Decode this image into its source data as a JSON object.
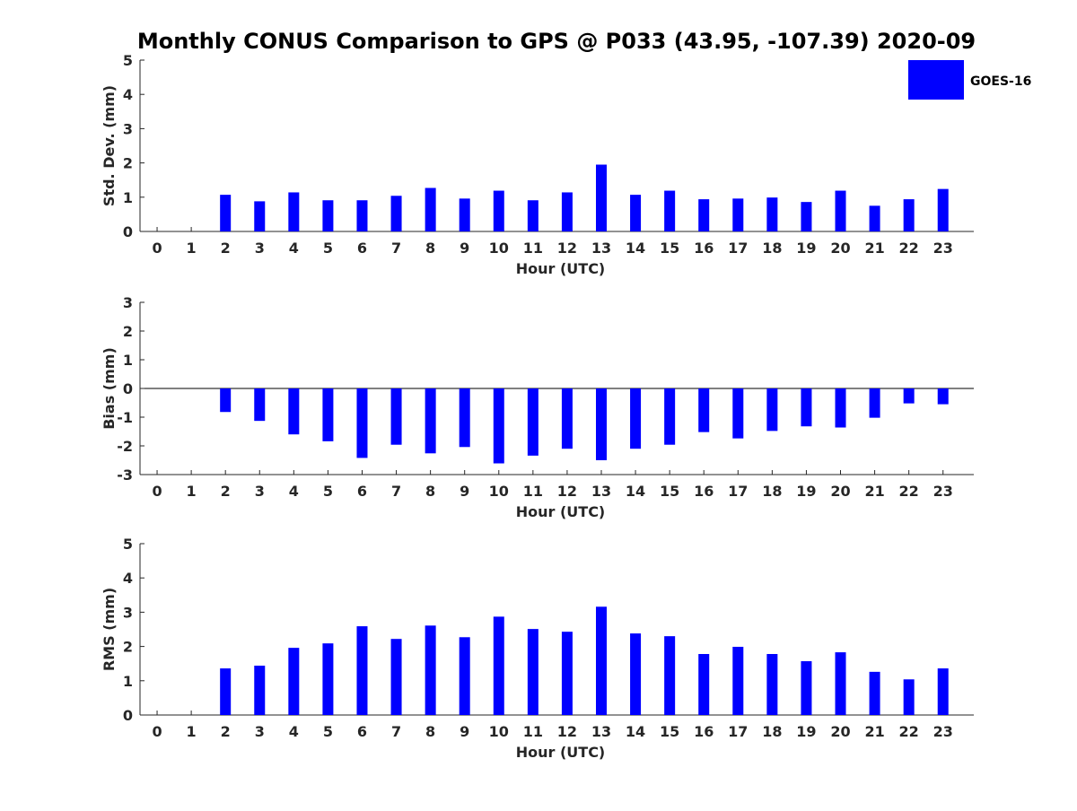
{
  "title": "Monthly CONUS Comparison to GPS @ P033 (43.95, -107.39) 2020-09",
  "legend": {
    "label": "GOES-16",
    "color": "#0000ff",
    "position": "top-right"
  },
  "chart_data": [
    {
      "type": "bar",
      "xlabel": "Hour (UTC)",
      "ylabel": "Std. Dev. (mm)",
      "ylim": [
        0,
        5
      ],
      "yticks": [
        0,
        1,
        2,
        3,
        4,
        5
      ],
      "categories": [
        "0",
        "1",
        "2",
        "3",
        "4",
        "5",
        "6",
        "7",
        "8",
        "9",
        "10",
        "11",
        "12",
        "13",
        "14",
        "15",
        "16",
        "17",
        "18",
        "19",
        "20",
        "21",
        "22",
        "23"
      ],
      "series": [
        {
          "name": "GOES-16",
          "color": "#0000ff",
          "values": [
            null,
            null,
            1.07,
            0.88,
            1.14,
            0.91,
            0.91,
            1.04,
            1.27,
            0.96,
            1.19,
            0.91,
            1.14,
            1.95,
            1.07,
            1.19,
            0.94,
            0.96,
            0.99,
            0.86,
            1.19,
            0.75,
            0.94,
            1.24
          ]
        }
      ]
    },
    {
      "type": "bar",
      "xlabel": "Hour (UTC)",
      "ylabel": "Bias (mm)",
      "ylim": [
        -3,
        3
      ],
      "yticks": [
        -3,
        -2,
        -1,
        0,
        1,
        2,
        3
      ],
      "categories": [
        "0",
        "1",
        "2",
        "3",
        "4",
        "5",
        "6",
        "7",
        "8",
        "9",
        "10",
        "11",
        "12",
        "13",
        "14",
        "15",
        "16",
        "17",
        "18",
        "19",
        "20",
        "21",
        "22",
        "23"
      ],
      "series": [
        {
          "name": "GOES-16",
          "color": "#0000ff",
          "values": [
            null,
            null,
            -0.82,
            -1.13,
            -1.6,
            -1.84,
            -2.42,
            -1.96,
            -2.26,
            -2.04,
            -2.61,
            -2.34,
            -2.1,
            -2.5,
            -2.1,
            -1.96,
            -1.52,
            -1.74,
            -1.48,
            -1.32,
            -1.36,
            -1.02,
            -0.52,
            -0.55
          ]
        }
      ]
    },
    {
      "type": "bar",
      "xlabel": "Hour (UTC)",
      "ylabel": "RMS (mm)",
      "ylim": [
        0,
        5
      ],
      "yticks": [
        0,
        1,
        2,
        3,
        4,
        5
      ],
      "categories": [
        "0",
        "1",
        "2",
        "3",
        "4",
        "5",
        "6",
        "7",
        "8",
        "9",
        "10",
        "11",
        "12",
        "13",
        "14",
        "15",
        "16",
        "17",
        "18",
        "19",
        "20",
        "21",
        "22",
        "23"
      ],
      "series": [
        {
          "name": "GOES-16",
          "color": "#0000ff",
          "values": [
            null,
            null,
            1.36,
            1.44,
            1.96,
            2.09,
            2.59,
            2.22,
            2.61,
            2.27,
            2.87,
            2.51,
            2.43,
            3.16,
            2.38,
            2.3,
            1.78,
            1.99,
            1.78,
            1.57,
            1.83,
            1.26,
            1.04,
            1.36
          ]
        }
      ]
    }
  ]
}
